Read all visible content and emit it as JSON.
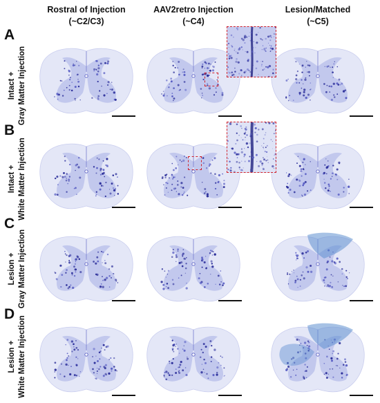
{
  "columns": [
    {
      "line1": "Rostral of Injection",
      "line2": "(~C2/C3)"
    },
    {
      "line1": "AAV2retro Injection",
      "line2": "(~C4)"
    },
    {
      "line1": "Lesion/Matched",
      "line2": "(~C5)"
    }
  ],
  "rows": [
    {
      "letter": "A",
      "line1": "Intact +",
      "line2": "Gray Matter Injection",
      "lesion": false
    },
    {
      "letter": "B",
      "line1": "Intact +",
      "line2": "White Matter Injection",
      "lesion": false
    },
    {
      "letter": "C",
      "line1": "Lesion +",
      "line2": "Gray Matter Injection",
      "lesion": true
    },
    {
      "letter": "D",
      "line1": "Lesion +",
      "line2": "White Matter Injection",
      "lesion": true
    }
  ],
  "colors": {
    "tissue": "#e4e7f7",
    "gray_matter": "#b7bde9",
    "stain_dark": "#2c2f9a",
    "stain_mid": "#5a5fc4",
    "lesion": "#5f8fd0",
    "highlight": "#d0202a",
    "text": "#111111"
  }
}
